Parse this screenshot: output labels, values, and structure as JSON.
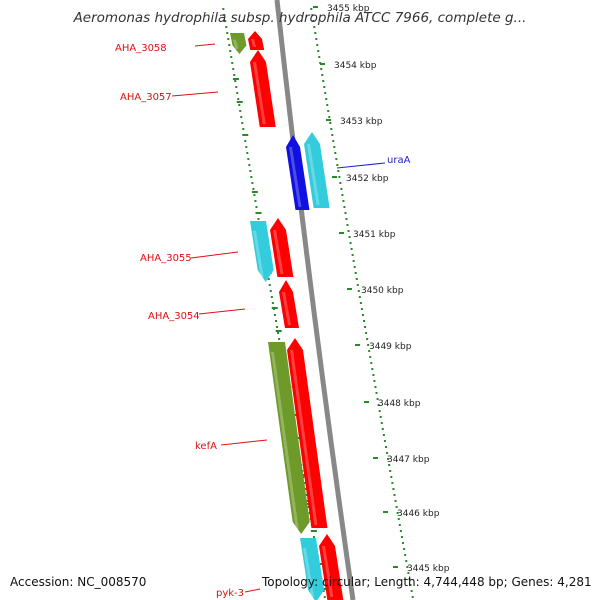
{
  "title": "Aeromonas hydrophila subsp. hydrophila ATCC 7966, complete g...",
  "footer": {
    "accession": "Accession: NC_008570",
    "topology": "Topology: circular; Length: 4,744,448 bp; Genes: 4,281"
  },
  "colors": {
    "forward_red": "#ff0000",
    "cyan": "#33ccdd",
    "blue": "#1010e0",
    "olive": "#6e9a2a",
    "backbone": "#888888",
    "tick_green": "#2a8a2a",
    "label_red": "#dd1111",
    "label_blue": "#2222cc"
  },
  "ticks": [
    {
      "label": "3455 kbp"
    },
    {
      "label": "3454 kbp"
    },
    {
      "label": "3453 kbp"
    },
    {
      "label": "3452 kbp"
    },
    {
      "label": "3451 kbp"
    },
    {
      "label": "3450 kbp"
    },
    {
      "label": "3449 kbp"
    },
    {
      "label": "3448 kbp"
    },
    {
      "label": "3447 kbp"
    },
    {
      "label": "3446 kbp"
    },
    {
      "label": "3445 kbp"
    }
  ],
  "genes": [
    {
      "name": "AHA_3058",
      "color": "olive",
      "strand": "reverse"
    },
    {
      "name": "",
      "color": "forward_red",
      "strand": "forward"
    },
    {
      "name": "AHA_3057",
      "color": "forward_red",
      "strand": "forward"
    },
    {
      "name": "uraA",
      "color": "blue",
      "strand": "forward"
    },
    {
      "name": "",
      "color": "cyan",
      "strand": "forward"
    },
    {
      "name": "AHA_3055",
      "color": "cyan",
      "strand": "reverse"
    },
    {
      "name": "",
      "color": "forward_red",
      "strand": "forward"
    },
    {
      "name": "AHA_3054",
      "color": "forward_red",
      "strand": "forward"
    },
    {
      "name": "kefA",
      "color": "olive",
      "strand": "reverse"
    },
    {
      "name": "",
      "color": "forward_red",
      "strand": "forward"
    },
    {
      "name": "pyk-3",
      "color": "cyan",
      "strand": "reverse"
    },
    {
      "name": "",
      "color": "forward_red",
      "strand": "forward"
    }
  ]
}
